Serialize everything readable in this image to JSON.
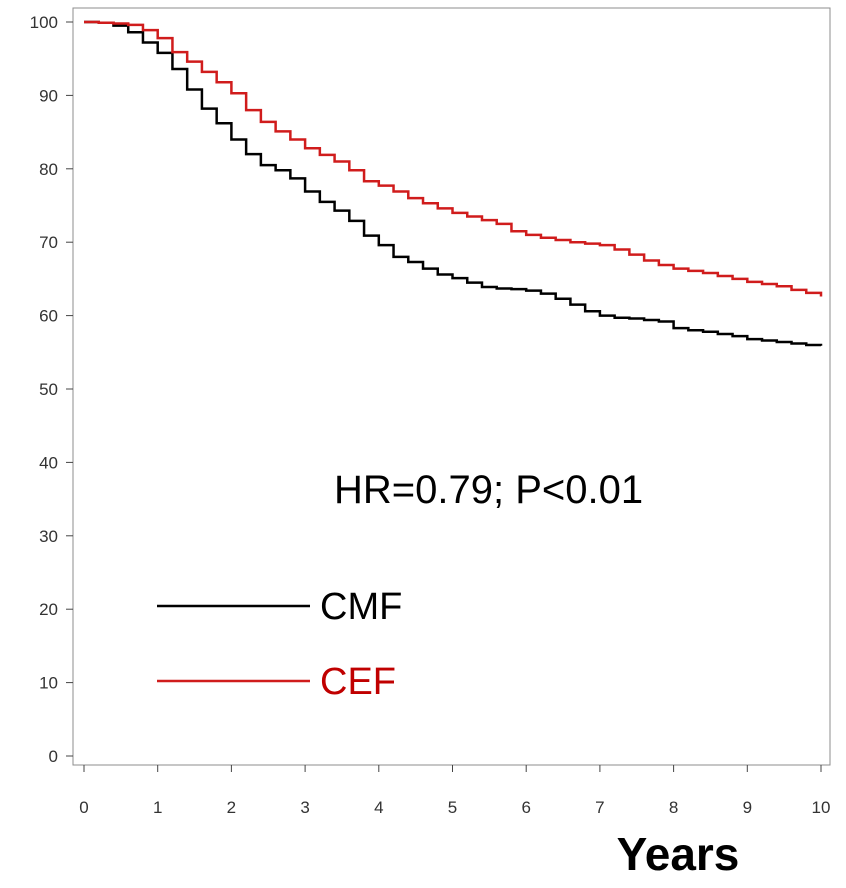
{
  "chart_data": {
    "type": "line",
    "title": "",
    "xlabel": "Years",
    "ylabel": "",
    "xlim": [
      0,
      10
    ],
    "ylim": [
      0,
      100
    ],
    "x_ticks": [
      0,
      1,
      2,
      3,
      4,
      5,
      6,
      7,
      8,
      9,
      10
    ],
    "y_ticks": [
      0,
      10,
      20,
      30,
      40,
      50,
      60,
      70,
      80,
      90,
      100
    ],
    "grid": false,
    "legend_position": "bottom-left",
    "annotation": "HR=0.79; P<0.01",
    "series": [
      {
        "name": "CMF",
        "color": "#000000",
        "step": true,
        "points": [
          [
            0,
            100
          ],
          [
            0.2,
            99.9
          ],
          [
            0.4,
            99.5
          ],
          [
            0.6,
            98.6
          ],
          [
            0.8,
            97.2
          ],
          [
            1.0,
            95.8
          ],
          [
            1.2,
            93.6
          ],
          [
            1.4,
            90.8
          ],
          [
            1.6,
            88.2
          ],
          [
            1.8,
            86.2
          ],
          [
            2.0,
            84.0
          ],
          [
            2.2,
            82.0
          ],
          [
            2.4,
            80.5
          ],
          [
            2.6,
            79.8
          ],
          [
            2.8,
            78.7
          ],
          [
            3.0,
            76.9
          ],
          [
            3.2,
            75.5
          ],
          [
            3.4,
            74.3
          ],
          [
            3.6,
            72.9
          ],
          [
            3.8,
            70.9
          ],
          [
            4.0,
            69.6
          ],
          [
            4.2,
            68.0
          ],
          [
            4.4,
            67.3
          ],
          [
            4.6,
            66.4
          ],
          [
            4.8,
            65.6
          ],
          [
            5.0,
            65.1
          ],
          [
            5.2,
            64.5
          ],
          [
            5.4,
            63.9
          ],
          [
            5.6,
            63.7
          ],
          [
            5.8,
            63.6
          ],
          [
            6.0,
            63.4
          ],
          [
            6.2,
            63.0
          ],
          [
            6.4,
            62.3
          ],
          [
            6.6,
            61.5
          ],
          [
            6.8,
            60.6
          ],
          [
            7.0,
            60.0
          ],
          [
            7.2,
            59.7
          ],
          [
            7.4,
            59.6
          ],
          [
            7.6,
            59.4
          ],
          [
            7.8,
            59.2
          ],
          [
            8.0,
            58.3
          ],
          [
            8.2,
            58.0
          ],
          [
            8.4,
            57.8
          ],
          [
            8.6,
            57.5
          ],
          [
            8.8,
            57.2
          ],
          [
            9.0,
            56.8
          ],
          [
            9.2,
            56.6
          ],
          [
            9.4,
            56.4
          ],
          [
            9.6,
            56.2
          ],
          [
            9.8,
            56.0
          ],
          [
            10.0,
            55.9
          ]
        ]
      },
      {
        "name": "CEF",
        "color": "#d01c1c",
        "step": true,
        "points": [
          [
            0,
            100
          ],
          [
            0.2,
            99.9
          ],
          [
            0.4,
            99.8
          ],
          [
            0.6,
            99.6
          ],
          [
            0.8,
            98.9
          ],
          [
            1.0,
            97.8
          ],
          [
            1.2,
            95.9
          ],
          [
            1.4,
            94.6
          ],
          [
            1.6,
            93.2
          ],
          [
            1.8,
            91.8
          ],
          [
            2.0,
            90.3
          ],
          [
            2.2,
            88.0
          ],
          [
            2.4,
            86.4
          ],
          [
            2.6,
            85.1
          ],
          [
            2.8,
            84.0
          ],
          [
            3.0,
            82.8
          ],
          [
            3.2,
            81.9
          ],
          [
            3.4,
            81.0
          ],
          [
            3.6,
            79.8
          ],
          [
            3.8,
            78.3
          ],
          [
            4.0,
            77.7
          ],
          [
            4.2,
            76.9
          ],
          [
            4.4,
            76.0
          ],
          [
            4.6,
            75.3
          ],
          [
            4.8,
            74.6
          ],
          [
            5.0,
            74.0
          ],
          [
            5.2,
            73.5
          ],
          [
            5.4,
            73.0
          ],
          [
            5.6,
            72.5
          ],
          [
            5.8,
            71.5
          ],
          [
            6.0,
            71.0
          ],
          [
            6.2,
            70.6
          ],
          [
            6.4,
            70.3
          ],
          [
            6.6,
            70.0
          ],
          [
            6.8,
            69.8
          ],
          [
            7.0,
            69.6
          ],
          [
            7.2,
            69.0
          ],
          [
            7.4,
            68.3
          ],
          [
            7.6,
            67.5
          ],
          [
            7.8,
            66.9
          ],
          [
            8.0,
            66.4
          ],
          [
            8.2,
            66.1
          ],
          [
            8.4,
            65.8
          ],
          [
            8.6,
            65.4
          ],
          [
            8.8,
            65.0
          ],
          [
            9.0,
            64.6
          ],
          [
            9.2,
            64.3
          ],
          [
            9.4,
            64.0
          ],
          [
            9.6,
            63.5
          ],
          [
            9.8,
            63.1
          ],
          [
            10.0,
            62.6
          ]
        ]
      }
    ]
  }
}
